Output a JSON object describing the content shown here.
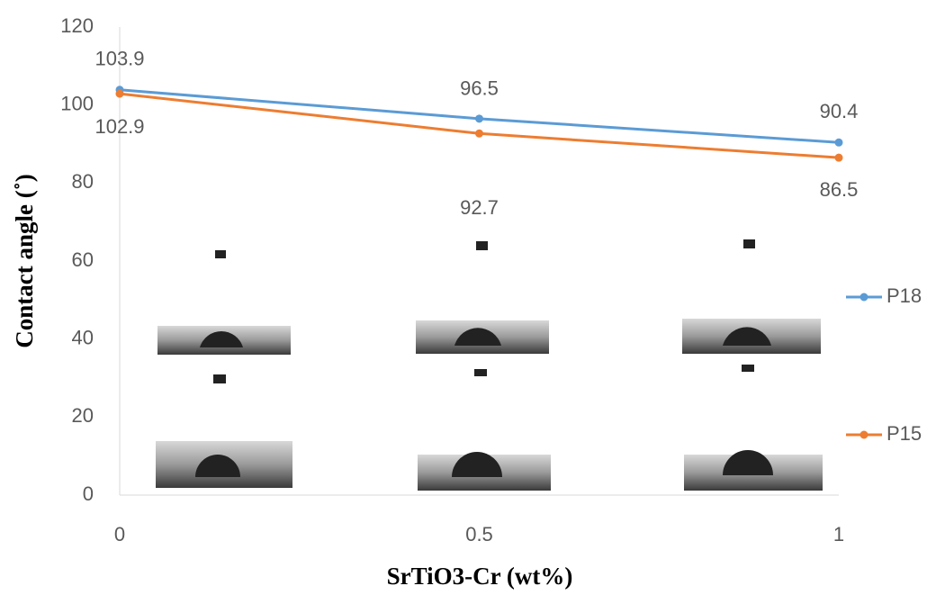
{
  "chart_data": {
    "type": "line",
    "x_label": "SrTiO3-Cr (wt%)",
    "y_label": "Contact angle (˚)",
    "x": [
      0,
      0.5,
      1
    ],
    "series": [
      {
        "name": "P18",
        "color": "#5b9bd5",
        "values": [
          103.9,
          96.5,
          90.4
        ]
      },
      {
        "name": "P15",
        "color": "#ed7d31",
        "values": [
          102.9,
          92.7,
          86.5
        ]
      }
    ],
    "xlim": [
      0,
      1
    ],
    "xticks": [
      0,
      0.5,
      1
    ],
    "ylim": [
      0,
      120
    ],
    "yticks": [
      0,
      20,
      40,
      60,
      80,
      100,
      120
    ],
    "grid": false,
    "legend": "right"
  }
}
